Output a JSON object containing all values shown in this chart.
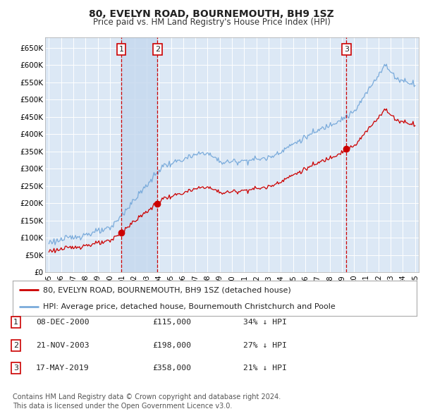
{
  "title": "80, EVELYN ROAD, BOURNEMOUTH, BH9 1SZ",
  "subtitle": "Price paid vs. HM Land Registry's House Price Index (HPI)",
  "ylim": [
    0,
    680000
  ],
  "xlim_start": 1994.7,
  "xlim_end": 2025.3,
  "sale_dates": [
    2000.93,
    2003.89,
    2019.37
  ],
  "sale_prices": [
    115000,
    198000,
    358000
  ],
  "sale_labels": [
    "1",
    "2",
    "3"
  ],
  "legend_line1": "80, EVELYN ROAD, BOURNEMOUTH, BH9 1SZ (detached house)",
  "legend_line2": "HPI: Average price, detached house, Bournemouth Christchurch and Poole",
  "table_entries": [
    {
      "label": "1",
      "date": "08-DEC-2000",
      "price": "£115,000",
      "pct": "34% ↓ HPI"
    },
    {
      "label": "2",
      "date": "21-NOV-2003",
      "price": "£198,000",
      "pct": "27% ↓ HPI"
    },
    {
      "label": "3",
      "date": "17-MAY-2019",
      "price": "£358,000",
      "pct": "21% ↓ HPI"
    }
  ],
  "footnote1": "Contains HM Land Registry data © Crown copyright and database right 2024.",
  "footnote2": "This data is licensed under the Open Government Licence v3.0.",
  "sale_line_color": "#cc0000",
  "hpi_line_color": "#7aabdb",
  "background_color": "#ffffff",
  "plot_bg_color": "#dce8f5",
  "grid_color": "#ffffff",
  "shade_color": "#c5d8ee"
}
